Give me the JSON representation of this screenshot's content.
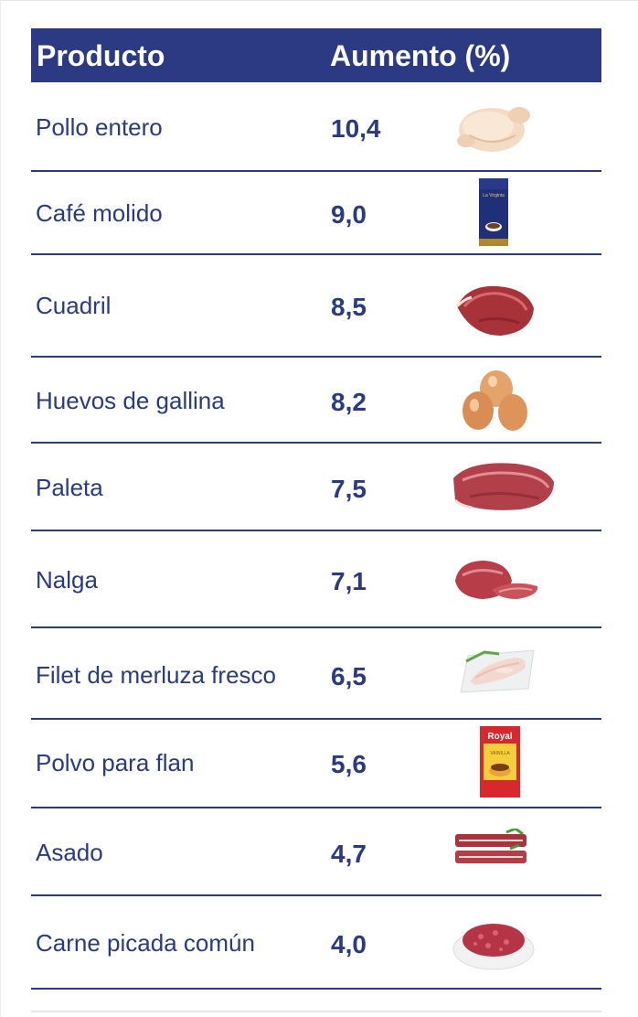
{
  "chart_data": {
    "type": "table",
    "columns": [
      "Producto",
      "Aumento (%)"
    ],
    "rows": [
      {
        "product": "Pollo entero",
        "value": "10,4",
        "icon": "whole-chicken-icon"
      },
      {
        "product": "Café molido",
        "value": "9,0",
        "icon": "coffee-bag-icon"
      },
      {
        "product": "Cuadril",
        "value": "8,5",
        "icon": "beef-rump-icon"
      },
      {
        "product": "Huevos de gallina",
        "value": "8,2",
        "icon": "eggs-icon"
      },
      {
        "product": "Paleta",
        "value": "7,5",
        "icon": "beef-shoulder-icon"
      },
      {
        "product": "Nalga",
        "value": "7,1",
        "icon": "beef-round-icon"
      },
      {
        "product": "Filet de merluza fresco",
        "value": "6,5",
        "icon": "fish-fillet-icon"
      },
      {
        "product": "Polvo para flan",
        "value": "5,6",
        "icon": "flan-mix-packet-icon"
      },
      {
        "product": "Asado",
        "value": "4,7",
        "icon": "short-ribs-icon"
      },
      {
        "product": "Carne picada común",
        "value": "4,0",
        "icon": "ground-beef-icon"
      }
    ],
    "values": [
      10.4,
      9.0,
      8.5,
      8.2,
      7.5,
      7.1,
      6.5,
      5.6,
      4.7,
      4.0
    ]
  },
  "images": {
    "coffee_brand": "La Virginia",
    "flan_brand": "Royal",
    "flan_flavor": "VAINILLA"
  },
  "colors": {
    "header_bg": "#2b3a82",
    "text": "#2b3a82",
    "divider": "#2b3a82"
  }
}
